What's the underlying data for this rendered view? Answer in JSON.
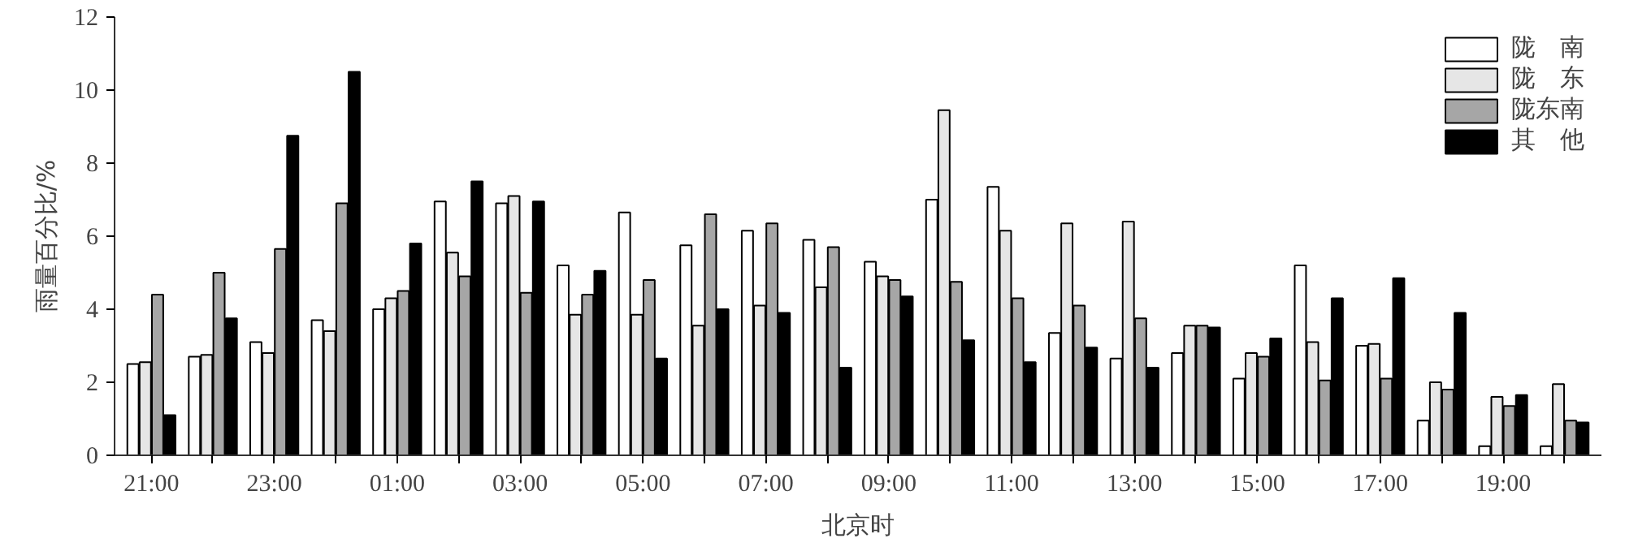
{
  "chart_data": {
    "type": "bar",
    "xlabel": "北京时",
    "ylabel": "雨量百分比/%",
    "categories": [
      "21:00",
      null,
      "23:00",
      null,
      "01:00",
      null,
      "03:00",
      null,
      "05:00",
      null,
      "07:00",
      null,
      "09:00",
      null,
      "11:00",
      null,
      "13:00",
      null,
      "15:00",
      null,
      "17:00",
      null,
      "19:00",
      null
    ],
    "ylim": [
      0,
      12
    ],
    "yticks": [
      0,
      2,
      4,
      6,
      8,
      10,
      12
    ],
    "grid": false,
    "legend": "top right",
    "series": [
      {
        "name": "陇　南",
        "color": "#ffffff",
        "values": [
          2.5,
          2.7,
          3.1,
          3.7,
          4.0,
          6.95,
          6.9,
          5.2,
          6.65,
          5.75,
          6.15,
          5.9,
          5.3,
          7.0,
          7.35,
          3.35,
          2.65,
          2.8,
          2.1,
          5.2,
          3.0,
          0.95,
          0.25,
          0.25
        ]
      },
      {
        "name": "陇　东",
        "color": "#e6e6e6",
        "values": [
          2.55,
          2.75,
          2.8,
          3.4,
          4.3,
          5.55,
          7.1,
          3.85,
          3.85,
          3.55,
          4.1,
          4.6,
          4.9,
          9.45,
          6.15,
          6.35,
          6.4,
          3.55,
          2.8,
          3.1,
          3.05,
          2.0,
          1.6,
          1.95
        ]
      },
      {
        "name": "陇东南",
        "color": "#a6a6a6",
        "values": [
          4.4,
          5.0,
          5.65,
          6.9,
          4.5,
          4.9,
          4.45,
          4.4,
          4.8,
          6.6,
          6.35,
          5.7,
          4.8,
          4.75,
          4.3,
          4.1,
          3.75,
          3.55,
          2.7,
          2.05,
          2.1,
          1.8,
          1.35,
          0.95
        ]
      },
      {
        "name": "其　他",
        "color": "#000000",
        "values": [
          1.1,
          3.75,
          8.75,
          10.5,
          5.8,
          7.5,
          6.95,
          5.05,
          2.65,
          4.0,
          3.9,
          2.4,
          4.35,
          3.15,
          2.55,
          2.95,
          2.4,
          3.5,
          3.2,
          4.3,
          4.85,
          3.9,
          1.65,
          0.9
        ]
      }
    ]
  }
}
